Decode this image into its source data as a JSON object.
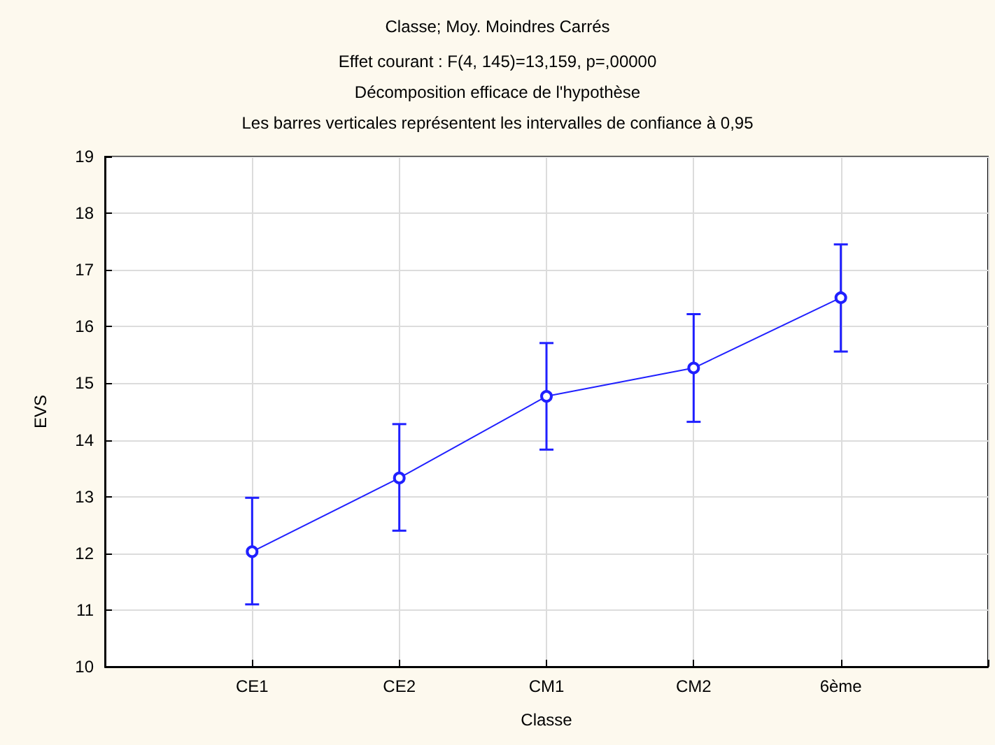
{
  "chart_data": {
    "type": "line",
    "title": "Classe; Moy. Moindres Carrés",
    "subtitle": "Effet courant : F(4, 145)=13,159, p=,00000\nDécomposition efficace de l'hypothèse\nLes barres verticales représentent les intervalles de confiance à 0,95",
    "xlabel": "Classe",
    "ylabel": "EVS",
    "categories": [
      "CE1",
      "CE2",
      "CM1",
      "CM2",
      "6ème"
    ],
    "series": [
      {
        "color": "#2020ff",
        "values": [
          12.03,
          13.33,
          14.77,
          15.27,
          16.51
        ],
        "errors": [
          [
            11.1,
            12.98
          ],
          [
            12.4,
            14.28
          ],
          [
            13.83,
            15.71
          ],
          [
            14.32,
            16.22
          ],
          [
            15.56,
            17.45
          ]
        ]
      }
    ],
    "ylim": [
      10,
      19
    ],
    "yticks": [
      10,
      11,
      12,
      13,
      14,
      15,
      16,
      17,
      18,
      19
    ],
    "grid": true,
    "marker": "circle",
    "line_style": "solid"
  }
}
